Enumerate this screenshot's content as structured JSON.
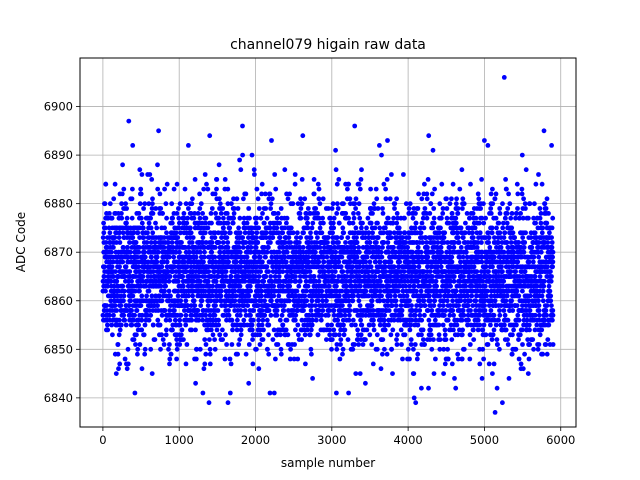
{
  "chart_data": {
    "type": "scatter",
    "title": "channel079 higain raw data",
    "xlabel": "sample number",
    "ylabel": "ADC Code",
    "xlim": [
      -300,
      6200
    ],
    "ylim": [
      6834,
      6910
    ],
    "xticks": [
      0,
      1000,
      2000,
      3000,
      4000,
      5000,
      6000
    ],
    "yticks": [
      6840,
      6850,
      6860,
      6870,
      6880,
      6890,
      6900
    ],
    "grid": true,
    "marker_color": "#0000ff",
    "series": [
      {
        "n_points": 5900,
        "x_range": [
          0,
          5900
        ],
        "bulk_range": [
          6847,
          6884
        ],
        "notable_points": [
          {
            "x": 5260,
            "y": 6906
          },
          {
            "x": 340,
            "y": 6897
          },
          {
            "x": 1830,
            "y": 6896
          },
          {
            "x": 3300,
            "y": 6896
          },
          {
            "x": 730,
            "y": 6895
          },
          {
            "x": 5780,
            "y": 6895
          },
          {
            "x": 1400,
            "y": 6894
          },
          {
            "x": 2620,
            "y": 6894
          },
          {
            "x": 4270,
            "y": 6894
          },
          {
            "x": 2210,
            "y": 6893
          },
          {
            "x": 3730,
            "y": 6893
          },
          {
            "x": 5000,
            "y": 6893
          },
          {
            "x": 5880,
            "y": 6892
          },
          {
            "x": 390,
            "y": 6892
          },
          {
            "x": 1120,
            "y": 6892
          },
          {
            "x": 1670,
            "y": 6841
          },
          {
            "x": 2190,
            "y": 6841
          },
          {
            "x": 3060,
            "y": 6841
          },
          {
            "x": 3220,
            "y": 6841
          },
          {
            "x": 420,
            "y": 6841
          },
          {
            "x": 1310,
            "y": 6841
          },
          {
            "x": 4080,
            "y": 6840
          },
          {
            "x": 1390,
            "y": 6839
          },
          {
            "x": 1640,
            "y": 6839
          },
          {
            "x": 5140,
            "y": 6837
          }
        ]
      }
    ]
  }
}
